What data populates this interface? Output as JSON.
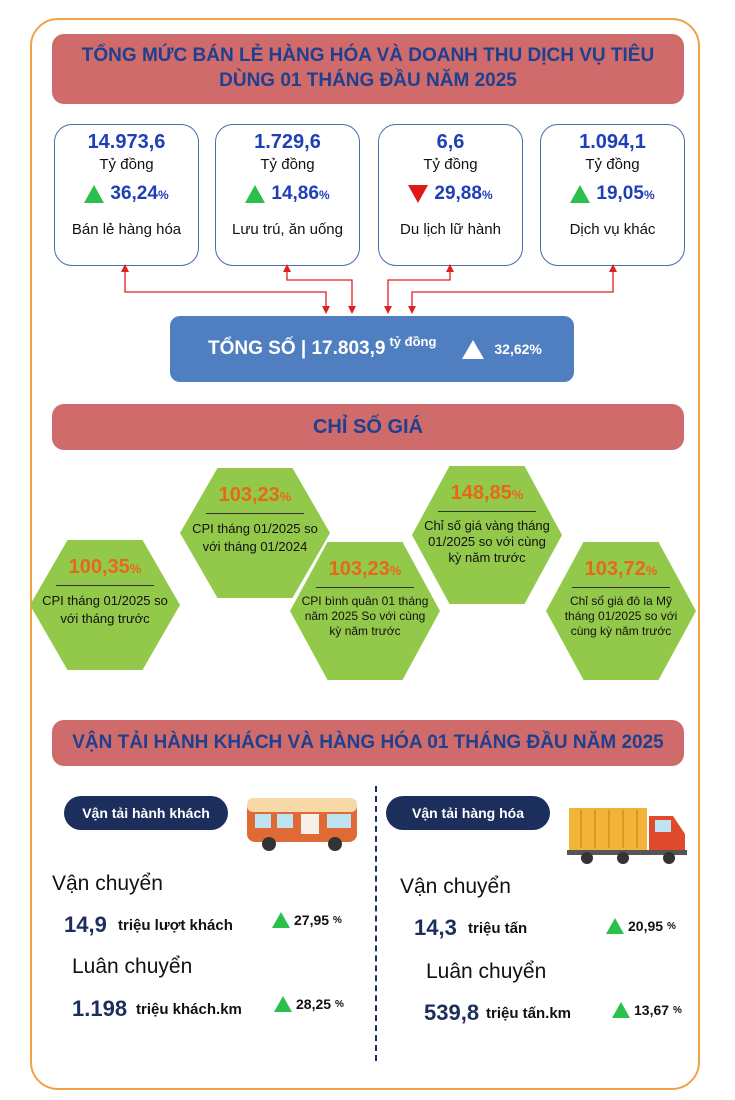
{
  "retail": {
    "title": "TỔNG MỨC BÁN LẺ HÀNG HÓA VÀ DOANH THU DỊCH VỤ TIÊU DÙNG 01 THÁNG ĐẦU NĂM 2025",
    "cards": [
      {
        "value": "14.973,6",
        "unit": "Tỷ đồng",
        "pct": "36,24",
        "pct_sign": "%",
        "trend": "up",
        "label": "Bán lẻ hàng hóa"
      },
      {
        "value": "1.729,6",
        "unit": "Tỷ đồng",
        "pct": "14,86",
        "pct_sign": "%",
        "trend": "up",
        "label": "Lưu trú, ăn uống"
      },
      {
        "value": "6,6",
        "unit": "Tỷ đồng",
        "pct": "29,88",
        "pct_sign": "%",
        "trend": "down",
        "label": "Du lịch lữ hành"
      },
      {
        "value": "1.094,1",
        "unit": "Tỷ đồng",
        "pct": "19,05",
        "pct_sign": "%",
        "trend": "up",
        "label": "Dịch vụ khác"
      }
    ],
    "total_label": "TỔNG SỐ | 17.803,9",
    "total_unit": "tỷ đồng",
    "total_pct": "32,62%"
  },
  "prices": {
    "title": "CHỈ SỐ GIÁ",
    "items": [
      {
        "value": "103,23",
        "pct": "%",
        "text": "CPI tháng 01/2025 so với tháng 01/2024"
      },
      {
        "value": "100,35",
        "pct": "%",
        "text": "CPI tháng 01/2025 so với tháng trước"
      },
      {
        "value": "103,23",
        "pct": "%",
        "text": "CPI bình quân 01 tháng năm 2025 So với cùng kỳ năm trước"
      },
      {
        "value": "148,85",
        "pct": "%",
        "text": "Chỉ số giá vàng tháng 01/2025 so với cùng kỳ năm trước"
      },
      {
        "value": "103,72",
        "pct": "%",
        "text": "Chỉ số giá đô la Mỹ tháng 01/2025 so với cùng kỳ năm trước"
      }
    ]
  },
  "transport": {
    "title": "VẬN TẢI HÀNH KHÁCH VÀ HÀNG HÓA 01 THÁNG ĐẦU NĂM 2025",
    "passenger": {
      "pill": "Vận tải hành khách",
      "h1": "Vận chuyển",
      "v1": "14,9",
      "u1": "triệu lượt khách",
      "p1": "27,95",
      "h2": "Luân chuyển",
      "v2": "1.198",
      "u2": "triệu khách.km",
      "p2": "28,25"
    },
    "cargo": {
      "pill": "Vận tải hàng hóa",
      "h1": "Vận chuyển",
      "v1": "14,3",
      "u1": "triệu tấn",
      "p1": "20,95",
      "h2": "Luân chuyển",
      "v2": "539,8",
      "u2": "triệu tấn.km",
      "p2": "13,67"
    },
    "pct_sign": "%"
  },
  "colors": {
    "accent": "#cf6b6b",
    "hex": "#93c94b",
    "navy": "#1c2f5c",
    "up": "#2bbf4b",
    "down": "#e01818"
  }
}
